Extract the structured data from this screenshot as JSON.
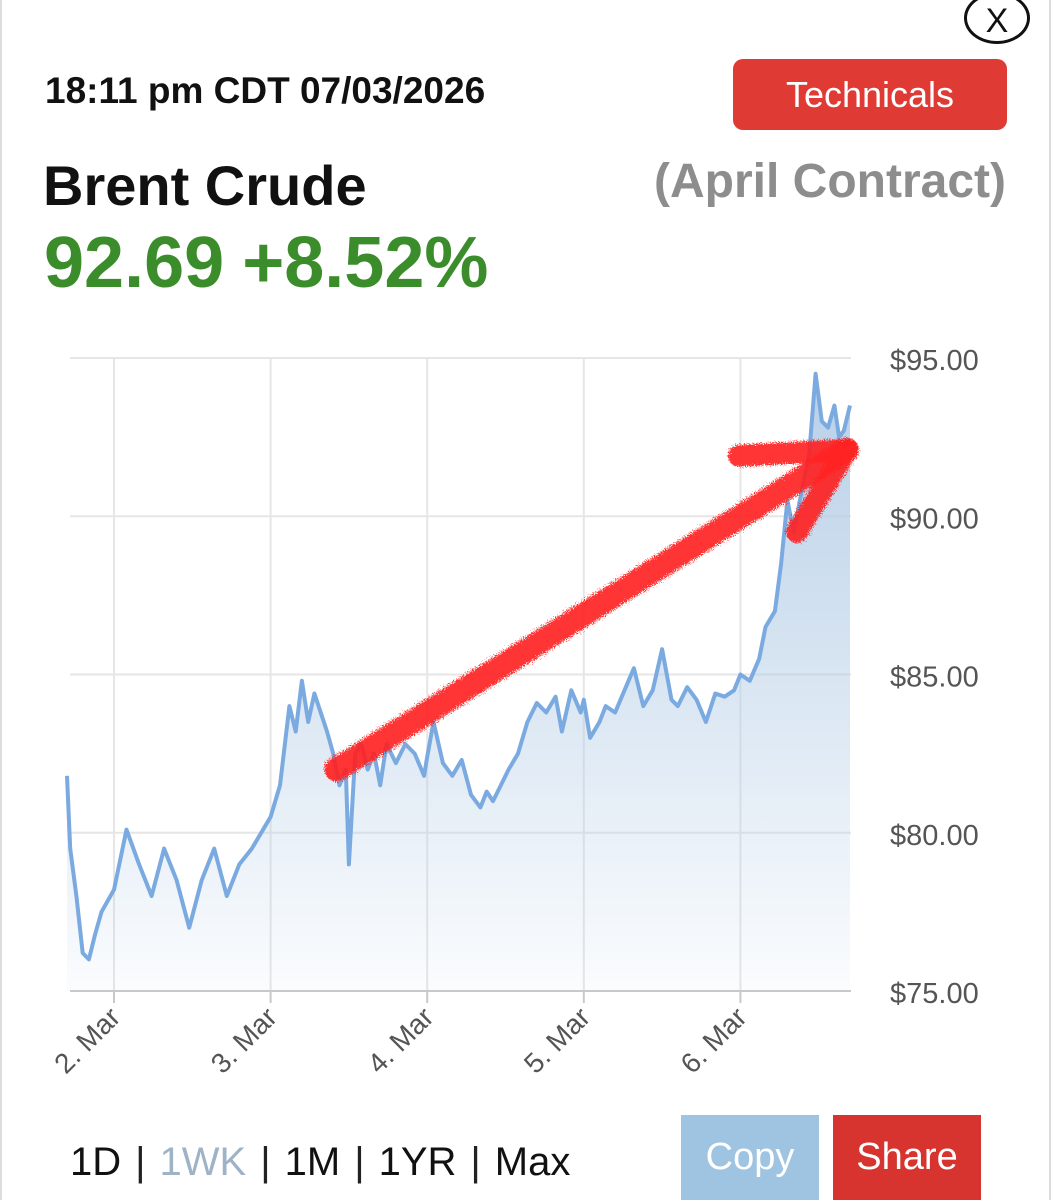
{
  "header": {
    "timestamp": "18:11 pm CDT 07/03/2026",
    "technicals_label": "Technicals",
    "close_label": "X"
  },
  "quote": {
    "instrument": "Brent Crude",
    "contract": "(April Contract)",
    "price": "92.69",
    "change": "+8.52%",
    "change_color": "#3b8c2a"
  },
  "chart_data": {
    "type": "area",
    "line_color": "#7aaae0",
    "fill_color": "#b4cde6",
    "annotation_color": "#ff2020",
    "y_ticks": [
      "$95.00",
      "$90.00",
      "$85.00",
      "$80.00",
      "$75.00"
    ],
    "ylim": [
      75,
      95
    ],
    "x_ticks": [
      "2. Mar",
      "3. Mar",
      "4. Mar",
      "5. Mar",
      "6. Mar"
    ],
    "grid": true,
    "series": [
      {
        "x": [
          1.7,
          1.72,
          1.76,
          1.8,
          1.84,
          1.88,
          1.92,
          2.0,
          2.08,
          2.16,
          2.24,
          2.32,
          2.4,
          2.48,
          2.56,
          2.64,
          2.72,
          2.8,
          2.88,
          2.94,
          3.0,
          3.06,
          3.12,
          3.16,
          3.2,
          3.24,
          3.28,
          3.32,
          3.36,
          3.4,
          3.44,
          3.48,
          3.5,
          3.54,
          3.58,
          3.62,
          3.66,
          3.7,
          3.74,
          3.8,
          3.86,
          3.92,
          3.98,
          4.0,
          4.04,
          4.1,
          4.16,
          4.22,
          4.28,
          4.34,
          4.38,
          4.42,
          4.48,
          4.52,
          4.58,
          4.64,
          4.7,
          4.76,
          4.82,
          4.86,
          4.92,
          4.98,
          5.0,
          5.04,
          5.1,
          5.14,
          5.2,
          5.26,
          5.32,
          5.38,
          5.44,
          5.5,
          5.56,
          5.6,
          5.66,
          5.72,
          5.78,
          5.84,
          5.9,
          5.96,
          6.0,
          6.06,
          6.12,
          6.16,
          6.22,
          6.26,
          6.3,
          6.34,
          6.38,
          6.42,
          6.44,
          6.48,
          6.52,
          6.56,
          6.6,
          6.63,
          6.66,
          6.7
        ],
        "y": [
          81.8,
          79.5,
          78.0,
          76.2,
          76.0,
          76.8,
          77.5,
          78.2,
          80.1,
          79.0,
          78.0,
          79.5,
          78.5,
          77.0,
          78.5,
          79.5,
          78.0,
          79.0,
          79.5,
          80.0,
          80.5,
          81.5,
          84.0,
          83.2,
          84.8,
          83.5,
          84.4,
          83.8,
          83.2,
          82.5,
          81.5,
          82.0,
          79.0,
          82.5,
          82.8,
          82.0,
          82.5,
          81.5,
          82.8,
          82.2,
          82.8,
          82.5,
          81.8,
          82.4,
          83.5,
          82.2,
          81.8,
          82.3,
          81.2,
          80.8,
          81.3,
          81.0,
          81.6,
          82.0,
          82.5,
          83.5,
          84.1,
          83.8,
          84.3,
          83.2,
          84.5,
          83.8,
          84.2,
          83.0,
          83.5,
          84.0,
          83.8,
          84.5,
          85.2,
          84.0,
          84.5,
          85.8,
          84.2,
          84.0,
          84.6,
          84.2,
          83.5,
          84.4,
          84.3,
          84.5,
          85.0,
          84.8,
          85.5,
          86.5,
          87.0,
          88.5,
          90.5,
          89.5,
          90.5,
          91.5,
          92.0,
          94.5,
          93.0,
          92.8,
          93.5,
          92.5,
          92.7,
          93.5
        ]
      }
    ],
    "annotation": {
      "type": "arrow",
      "from": [
        3.42,
        82.0
      ],
      "to": [
        6.68,
        92.1
      ]
    }
  },
  "ranges": {
    "options": [
      "1D",
      "1WK",
      "1M",
      "1YR",
      "Max"
    ],
    "active_index": 1,
    "separator": "|"
  },
  "actions": {
    "copy_label": "Copy",
    "share_label": "Share"
  }
}
